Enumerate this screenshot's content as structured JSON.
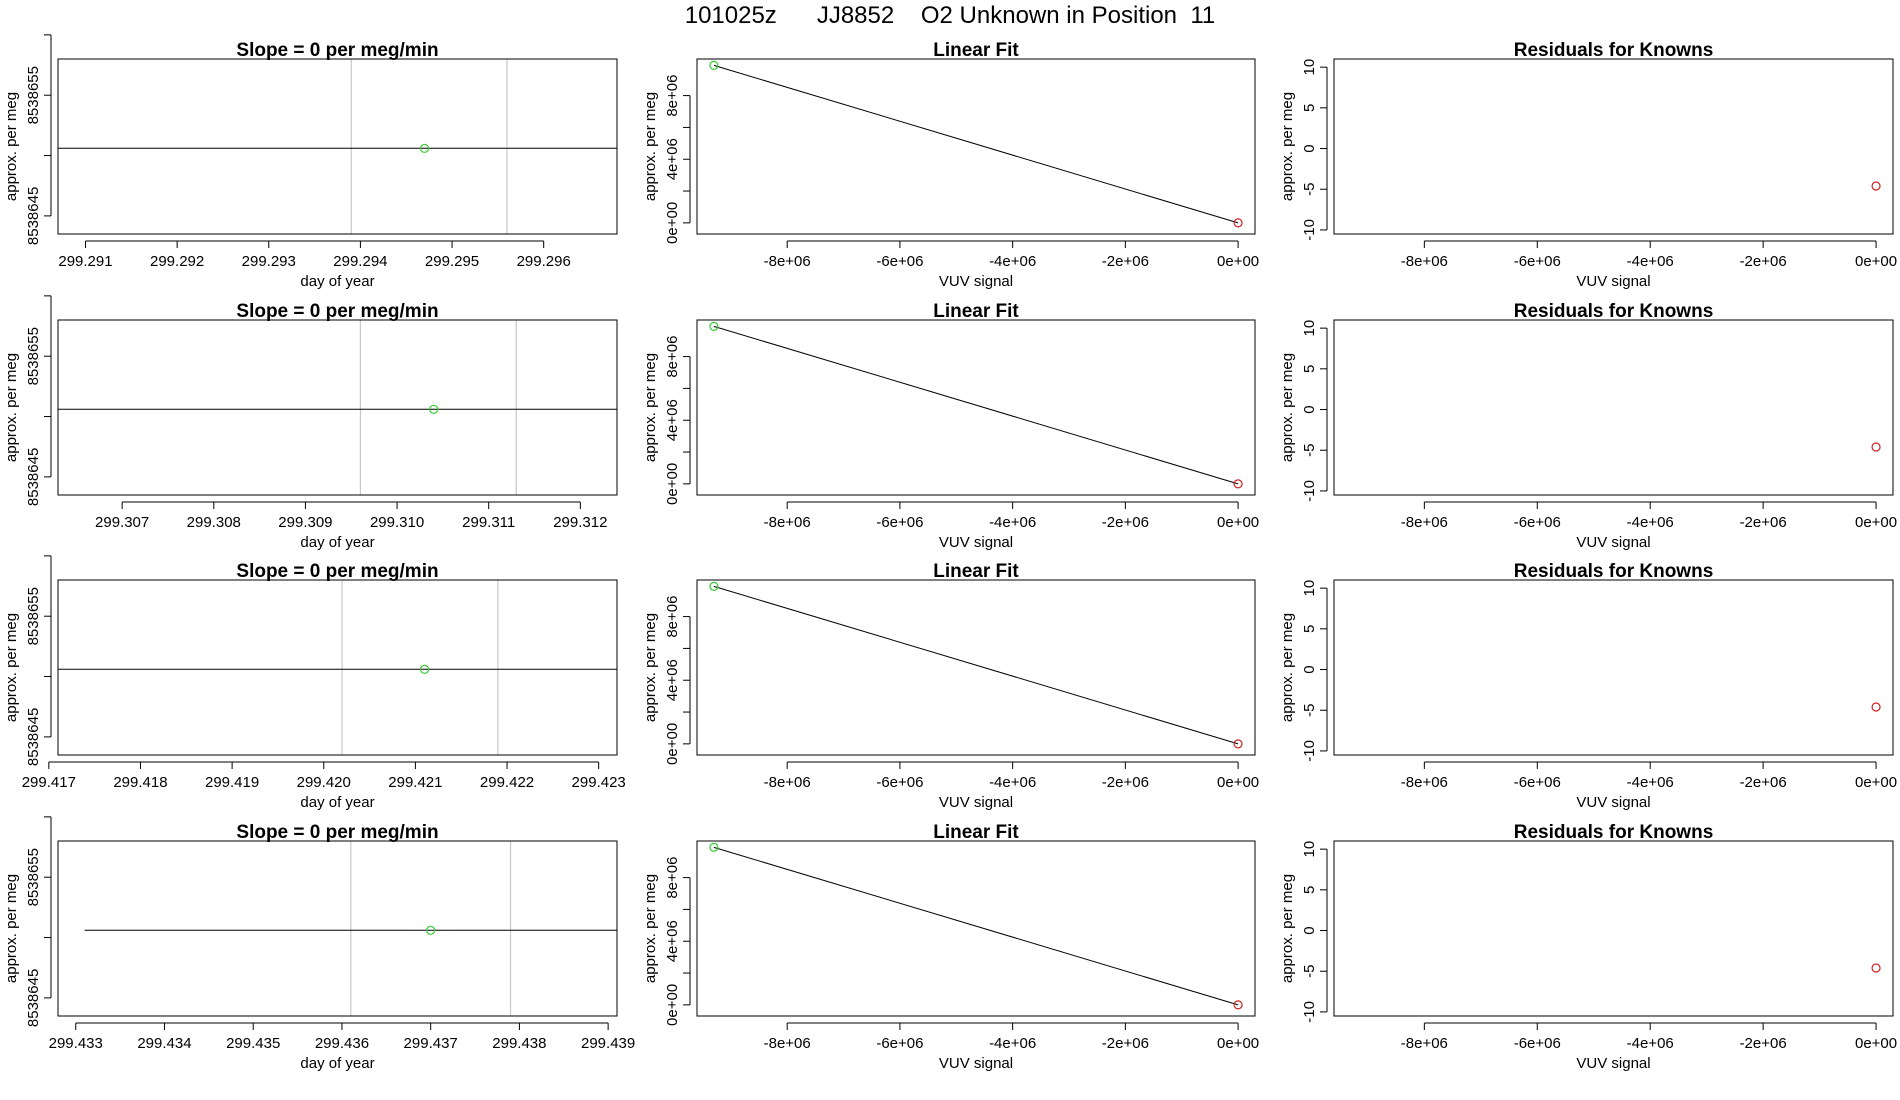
{
  "figure": {
    "title": "101025z      JJ8852    O2 Unknown in Position  11"
  },
  "colors": {
    "line": "#000000",
    "grid": "#c8c8c8",
    "unknown_point": "#33cc33",
    "known_point": "#cc2222",
    "axis": "#000000"
  },
  "chart_data": [
    {
      "type": "line",
      "row": 0,
      "col": 0,
      "title": "Slope =  0  per meg/min",
      "xlabel": "day of year",
      "ylabel": "approx. per meg",
      "xlim": [
        299.2907,
        299.2968
      ],
      "ylim": [
        8538643.5,
        8538658
      ],
      "xticks": [
        299.291,
        299.292,
        299.293,
        299.294,
        299.295,
        299.296
      ],
      "xtick_labels": [
        "299.291",
        "299.292",
        "299.293",
        "299.294",
        "299.295",
        "299.296"
      ],
      "yticks": [
        8538645,
        8538650,
        8538655,
        8538660
      ],
      "ytick_labels": [
        "8538645",
        "",
        "8538655",
        ""
      ],
      "vlines": [
        299.2939,
        299.2956
      ],
      "line": {
        "x": [
          299.2907,
          299.2968
        ],
        "y": [
          8538650.6,
          8538650.6
        ]
      },
      "points": [
        {
          "x": 299.2947,
          "y": 8538650.6,
          "kind": "unknown"
        }
      ]
    },
    {
      "type": "line",
      "row": 0,
      "col": 1,
      "title": "Linear Fit",
      "xlabel": "VUV signal",
      "ylabel": "approx. per meg",
      "xlim": [
        -9600000,
        300000
      ],
      "ylim": [
        -700000,
        10300000
      ],
      "xticks": [
        -8000000,
        -6000000,
        -4000000,
        -2000000,
        0
      ],
      "xtick_labels": [
        "-8e+06",
        "-6e+06",
        "-4e+06",
        "-2e+06",
        "0e+00"
      ],
      "yticks": [
        0,
        2000000,
        4000000,
        6000000,
        8000000
      ],
      "ytick_labels": [
        "0e+00",
        "",
        "4e+06",
        "",
        "8e+06"
      ],
      "vlines": [],
      "line": {
        "x": [
          -9300000,
          0
        ],
        "y": [
          9900000,
          0
        ]
      },
      "points": [
        {
          "x": -9300000,
          "y": 9900000,
          "kind": "unknown"
        },
        {
          "x": 0,
          "y": 0,
          "kind": "known"
        }
      ]
    },
    {
      "type": "scatter",
      "row": 0,
      "col": 2,
      "title": "Residuals for Knowns",
      "xlabel": "VUV signal",
      "ylabel": "approx. per meg",
      "xlim": [
        -9600000,
        300000
      ],
      "ylim": [
        -10.5,
        11
      ],
      "xticks": [
        -8000000,
        -6000000,
        -4000000,
        -2000000,
        0
      ],
      "xtick_labels": [
        "-8e+06",
        "-6e+06",
        "-4e+06",
        "-2e+06",
        "0e+00"
      ],
      "yticks": [
        -10,
        -5,
        0,
        5,
        10
      ],
      "ytick_labels": [
        "-10",
        "-5",
        "0",
        "5",
        "10"
      ],
      "vlines": [],
      "points": [
        {
          "x": 0,
          "y": -4.6,
          "kind": "known"
        }
      ]
    },
    {
      "type": "line",
      "row": 1,
      "col": 0,
      "title": "Slope =  0  per meg/min",
      "xlabel": "day of year",
      "ylabel": "approx. per meg",
      "xlim": [
        299.3063,
        299.3124
      ],
      "ylim": [
        8538643.5,
        8538658
      ],
      "xticks": [
        299.307,
        299.308,
        299.309,
        299.31,
        299.311,
        299.312
      ],
      "xtick_labels": [
        "299.307",
        "299.308",
        "299.309",
        "299.310",
        "299.311",
        "299.312"
      ],
      "yticks": [
        8538645,
        8538650,
        8538655,
        8538660
      ],
      "ytick_labels": [
        "8538645",
        "",
        "8538655",
        ""
      ],
      "vlines": [
        299.3096,
        299.3113
      ],
      "line": {
        "x": [
          299.3063,
          299.3124
        ],
        "y": [
          8538650.6,
          8538650.6
        ]
      },
      "points": [
        {
          "x": 299.3104,
          "y": 8538650.6,
          "kind": "unknown"
        }
      ]
    },
    {
      "type": "line",
      "row": 1,
      "col": 1,
      "title": "Linear Fit",
      "xlabel": "VUV signal",
      "ylabel": "approx. per meg",
      "xlim": [
        -9600000,
        300000
      ],
      "ylim": [
        -700000,
        10300000
      ],
      "xticks": [
        -8000000,
        -6000000,
        -4000000,
        -2000000,
        0
      ],
      "xtick_labels": [
        "-8e+06",
        "-6e+06",
        "-4e+06",
        "-2e+06",
        "0e+00"
      ],
      "yticks": [
        0,
        2000000,
        4000000,
        6000000,
        8000000
      ],
      "ytick_labels": [
        "0e+00",
        "",
        "4e+06",
        "",
        "8e+06"
      ],
      "vlines": [],
      "line": {
        "x": [
          -9300000,
          0
        ],
        "y": [
          9900000,
          0
        ]
      },
      "points": [
        {
          "x": -9300000,
          "y": 9900000,
          "kind": "unknown"
        },
        {
          "x": 0,
          "y": 0,
          "kind": "known"
        }
      ]
    },
    {
      "type": "scatter",
      "row": 1,
      "col": 2,
      "title": "Residuals for Knowns",
      "xlabel": "VUV signal",
      "ylabel": "approx. per meg",
      "xlim": [
        -9600000,
        300000
      ],
      "ylim": [
        -10.5,
        11
      ],
      "xticks": [
        -8000000,
        -6000000,
        -4000000,
        -2000000,
        0
      ],
      "xtick_labels": [
        "-8e+06",
        "-6e+06",
        "-4e+06",
        "-2e+06",
        "0e+00"
      ],
      "yticks": [
        -10,
        -5,
        0,
        5,
        10
      ],
      "ytick_labels": [
        "-10",
        "-5",
        "0",
        "5",
        "10"
      ],
      "vlines": [],
      "points": [
        {
          "x": 0,
          "y": -4.6,
          "kind": "known"
        }
      ]
    },
    {
      "type": "line",
      "row": 2,
      "col": 0,
      "title": "Slope =  0  per meg/min",
      "xlabel": "day of year",
      "ylabel": "approx. per meg",
      "xlim": [
        299.4171,
        299.4232
      ],
      "ylim": [
        8538643.5,
        8538658
      ],
      "xticks": [
        299.417,
        299.418,
        299.419,
        299.42,
        299.421,
        299.422,
        299.423
      ],
      "xtick_labels": [
        "299.417",
        "299.418",
        "299.419",
        "299.420",
        "299.421",
        "299.422",
        "299.423"
      ],
      "yticks": [
        8538645,
        8538650,
        8538655,
        8538660
      ],
      "ytick_labels": [
        "8538645",
        "",
        "8538655",
        ""
      ],
      "vlines": [
        299.4202,
        299.4219
      ],
      "line": {
        "x": [
          299.4171,
          299.4232
        ],
        "y": [
          8538650.6,
          8538650.6
        ]
      },
      "points": [
        {
          "x": 299.4211,
          "y": 8538650.6,
          "kind": "unknown"
        }
      ]
    },
    {
      "type": "line",
      "row": 2,
      "col": 1,
      "title": "Linear Fit",
      "xlabel": "VUV signal",
      "ylabel": "approx. per meg",
      "xlim": [
        -9600000,
        300000
      ],
      "ylim": [
        -700000,
        10300000
      ],
      "xticks": [
        -8000000,
        -6000000,
        -4000000,
        -2000000,
        0
      ],
      "xtick_labels": [
        "-8e+06",
        "-6e+06",
        "-4e+06",
        "-2e+06",
        "0e+00"
      ],
      "yticks": [
        0,
        2000000,
        4000000,
        6000000,
        8000000
      ],
      "ytick_labels": [
        "0e+00",
        "",
        "4e+06",
        "",
        "8e+06"
      ],
      "vlines": [],
      "line": {
        "x": [
          -9300000,
          0
        ],
        "y": [
          9900000,
          0
        ]
      },
      "points": [
        {
          "x": -9300000,
          "y": 9900000,
          "kind": "unknown"
        },
        {
          "x": 0,
          "y": 0,
          "kind": "known"
        }
      ]
    },
    {
      "type": "scatter",
      "row": 2,
      "col": 2,
      "title": "Residuals for Knowns",
      "xlabel": "VUV signal",
      "ylabel": "approx. per meg",
      "xlim": [
        -9600000,
        300000
      ],
      "ylim": [
        -10.5,
        11
      ],
      "xticks": [
        -8000000,
        -6000000,
        -4000000,
        -2000000,
        0
      ],
      "xtick_labels": [
        "-8e+06",
        "-6e+06",
        "-4e+06",
        "-2e+06",
        "0e+00"
      ],
      "yticks": [
        -10,
        -5,
        0,
        5,
        10
      ],
      "ytick_labels": [
        "-10",
        "-5",
        "0",
        "5",
        "10"
      ],
      "vlines": [],
      "points": [
        {
          "x": 0,
          "y": -4.6,
          "kind": "known"
        }
      ]
    },
    {
      "type": "line",
      "row": 3,
      "col": 0,
      "title": "Slope =  0  per meg/min",
      "xlabel": "day of year",
      "ylabel": "approx. per meg",
      "xlim": [
        299.4328,
        299.4391
      ],
      "ylim": [
        8538643.5,
        8538658
      ],
      "xticks": [
        299.433,
        299.434,
        299.435,
        299.436,
        299.437,
        299.438,
        299.439
      ],
      "xtick_labels": [
        "299.433",
        "299.434",
        "299.435",
        "299.436",
        "299.437",
        "299.438",
        "299.439"
      ],
      "yticks": [
        8538645,
        8538650,
        8538655,
        8538660
      ],
      "ytick_labels": [
        "8538645",
        "",
        "8538655",
        ""
      ],
      "vlines": [
        299.4361,
        299.4379
      ],
      "line": {
        "x": [
          299.4331,
          299.4391
        ],
        "y": [
          8538650.6,
          8538650.6
        ]
      },
      "points": [
        {
          "x": 299.437,
          "y": 8538650.6,
          "kind": "unknown"
        }
      ]
    },
    {
      "type": "line",
      "row": 3,
      "col": 1,
      "title": "Linear Fit",
      "xlabel": "VUV signal",
      "ylabel": "approx. per meg",
      "xlim": [
        -9600000,
        300000
      ],
      "ylim": [
        -700000,
        10300000
      ],
      "xticks": [
        -8000000,
        -6000000,
        -4000000,
        -2000000,
        0
      ],
      "xtick_labels": [
        "-8e+06",
        "-6e+06",
        "-4e+06",
        "-2e+06",
        "0e+00"
      ],
      "yticks": [
        0,
        2000000,
        4000000,
        6000000,
        8000000
      ],
      "ytick_labels": [
        "0e+00",
        "",
        "4e+06",
        "",
        "8e+06"
      ],
      "vlines": [],
      "line": {
        "x": [
          -9300000,
          0
        ],
        "y": [
          9900000,
          0
        ]
      },
      "points": [
        {
          "x": -9300000,
          "y": 9900000,
          "kind": "unknown"
        },
        {
          "x": 0,
          "y": 0,
          "kind": "known"
        }
      ]
    },
    {
      "type": "scatter",
      "row": 3,
      "col": 2,
      "title": "Residuals for Knowns",
      "xlabel": "VUV signal",
      "ylabel": "approx. per meg",
      "xlim": [
        -9600000,
        300000
      ],
      "ylim": [
        -10.5,
        11
      ],
      "xticks": [
        -8000000,
        -6000000,
        -4000000,
        -2000000,
        0
      ],
      "xtick_labels": [
        "-8e+06",
        "-6e+06",
        "-4e+06",
        "-2e+06",
        "0e+00"
      ],
      "yticks": [
        -10,
        -5,
        0,
        5,
        10
      ],
      "ytick_labels": [
        "-10",
        "-5",
        "0",
        "5",
        "10"
      ],
      "vlines": [],
      "points": [
        {
          "x": 0,
          "y": -4.6,
          "kind": "known"
        }
      ]
    }
  ]
}
